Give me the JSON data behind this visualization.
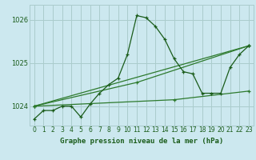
{
  "title": "Graphe pression niveau de la mer (hPa)",
  "bg_color": "#cce8ef",
  "grid_color": "#aacccc",
  "line_dark": "#1a5c1a",
  "line_med": "#2d7a2d",
  "xlim": [
    -0.5,
    23.5
  ],
  "ylim": [
    1023.55,
    1026.35
  ],
  "yticks": [
    1024,
    1025,
    1026
  ],
  "xticks": [
    0,
    1,
    2,
    3,
    4,
    5,
    6,
    7,
    8,
    9,
    10,
    11,
    12,
    13,
    14,
    15,
    16,
    17,
    18,
    19,
    20,
    21,
    22,
    23
  ],
  "series1_x": [
    0,
    1,
    2,
    3,
    4,
    5,
    6,
    7,
    8,
    9,
    10,
    11,
    12,
    13,
    14,
    15,
    16,
    17,
    18,
    19,
    20,
    21,
    22,
    23
  ],
  "series1_y": [
    1023.7,
    1023.9,
    1023.9,
    1024.0,
    1024.0,
    1023.75,
    1024.05,
    1024.3,
    1024.5,
    1024.65,
    1025.2,
    1026.1,
    1026.05,
    1025.85,
    1025.55,
    1025.1,
    1024.8,
    1024.75,
    1024.3,
    1024.3,
    1024.3,
    1024.9,
    1025.2,
    1025.4
  ],
  "series2_x": [
    0,
    23
  ],
  "series2_y": [
    1024.0,
    1025.4
  ],
  "series3_x": [
    0,
    11,
    23
  ],
  "series3_y": [
    1024.0,
    1024.55,
    1025.4
  ],
  "series4_x": [
    0,
    15,
    23
  ],
  "series4_y": [
    1024.0,
    1024.15,
    1024.35
  ]
}
